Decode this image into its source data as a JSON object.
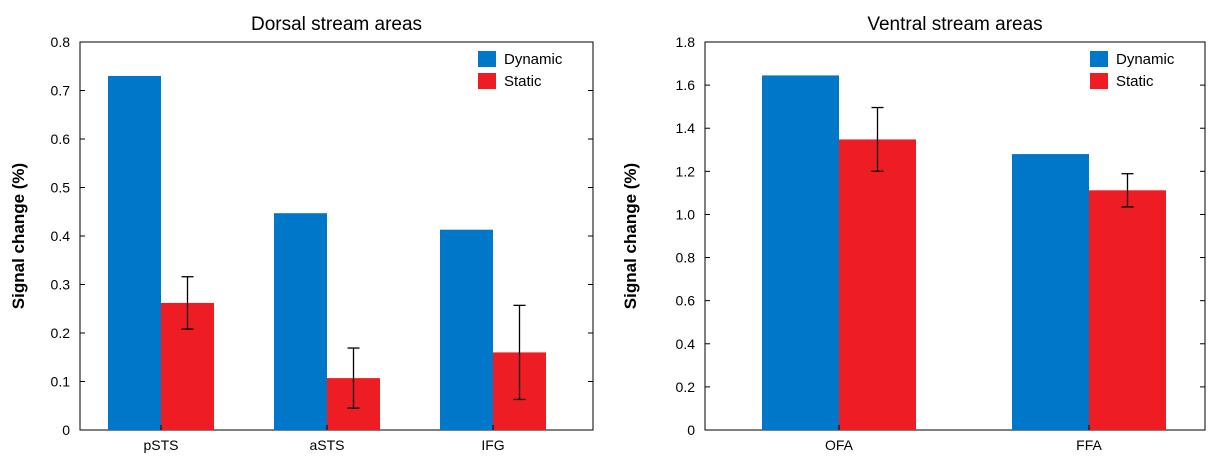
{
  "chart_data": [
    {
      "type": "bar",
      "title": "Dorsal stream areas",
      "xlabel": "",
      "ylabel": "Signal change (%)",
      "ylim": [
        0,
        0.8
      ],
      "yticks": [
        0,
        0.1,
        0.2,
        0.3,
        0.4,
        0.5,
        0.6,
        0.7,
        0.8
      ],
      "ytick_labels": [
        "0",
        "0.1",
        "0.2",
        "0.3",
        "0.4",
        "0.5",
        "0.6",
        "0.7",
        "0.8"
      ],
      "categories": [
        "pSTS",
        "aSTS",
        "IFG"
      ],
      "legend_position": "top-right",
      "grid": false,
      "series": [
        {
          "name": "Dynamic",
          "color": "#0077c8",
          "values": [
            0.73,
            0.447,
            0.413
          ],
          "errors": [
            null,
            null,
            null
          ]
        },
        {
          "name": "Static",
          "color": "#ee1d24",
          "values": [
            0.262,
            0.107,
            0.16
          ],
          "errors": [
            0.054,
            0.062,
            0.097
          ]
        }
      ]
    },
    {
      "type": "bar",
      "title": "Ventral stream areas",
      "xlabel": "",
      "ylabel": "Signal change (%)",
      "ylim": [
        0,
        1.8
      ],
      "yticks": [
        0,
        0.2,
        0.4,
        0.6,
        0.8,
        1.0,
        1.2,
        1.4,
        1.6,
        1.8
      ],
      "ytick_labels": [
        "0",
        "0.2",
        "0.4",
        "0.6",
        "0.8",
        "1.0",
        "1.2",
        "1.4",
        "1.6",
        "1.8"
      ],
      "categories": [
        "OFA",
        "FFA"
      ],
      "legend_position": "top-right",
      "grid": false,
      "series": [
        {
          "name": "Dynamic",
          "color": "#0077c8",
          "values": [
            1.645,
            1.28
          ],
          "errors": [
            null,
            null
          ]
        },
        {
          "name": "Static",
          "color": "#ee1d24",
          "values": [
            1.348,
            1.112
          ],
          "errors": [
            0.148,
            0.077
          ]
        }
      ]
    }
  ]
}
